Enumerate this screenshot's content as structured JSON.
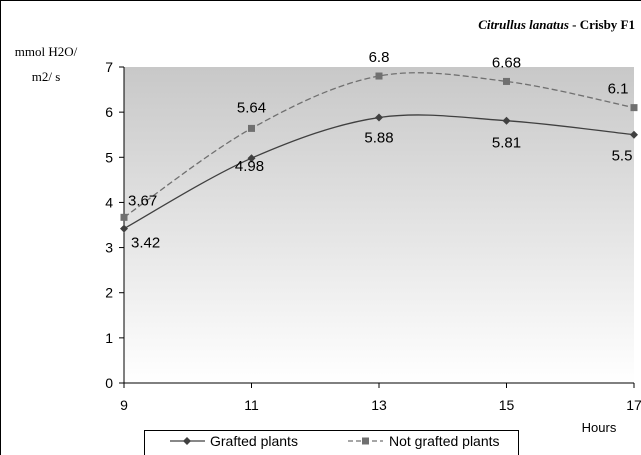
{
  "chart_data": {
    "type": "line",
    "title": "Crisby F1",
    "title_species": "Citrullus lanatus",
    "title_separator": " - ",
    "ylabel_line1": "mmol H2O/",
    "ylabel_line2": "m2/ s",
    "xlabel": "Hours",
    "x": [
      9,
      11,
      13,
      15,
      17
    ],
    "x_ticks": [
      "9",
      "11",
      "13",
      "15",
      "17"
    ],
    "y_ticks": [
      "0",
      "1",
      "2",
      "3",
      "4",
      "5",
      "6",
      "7"
    ],
    "xlim": [
      9,
      17
    ],
    "ylim": [
      0,
      7
    ],
    "grid": false,
    "legend_position": "bottom",
    "series": [
      {
        "name": "Grafted plants",
        "values": [
          3.42,
          4.98,
          5.88,
          5.81,
          5.5
        ],
        "labels": [
          "3.42",
          "4.98",
          "5.88",
          "5.81",
          "5.5"
        ],
        "marker": "diamond",
        "line_style": "solid",
        "color": "#404040"
      },
      {
        "name": "Not grafted plants",
        "values": [
          3.67,
          5.64,
          6.8,
          6.68,
          6.1
        ],
        "labels": [
          "3.67",
          "5.64",
          "6.8",
          "6.68",
          "6.1"
        ],
        "marker": "square",
        "line_style": "dashed",
        "color": "#707070"
      }
    ]
  }
}
